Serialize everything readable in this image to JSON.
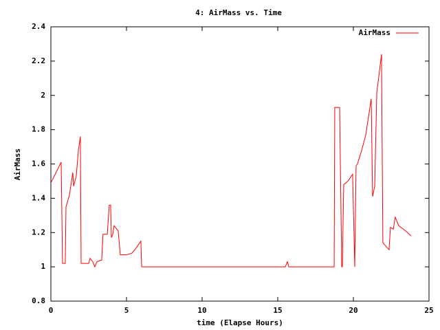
{
  "chart_data": {
    "type": "line",
    "title": "4: AirMass vs. Time",
    "x_label": "time (Elapse Hours)",
    "y_label": "AirMass",
    "x": [
      0,
      0.68,
      0.77,
      0.95,
      1.0,
      1.23,
      1.45,
      1.5,
      1.68,
      1.82,
      1.95,
      2.0,
      2.5,
      2.59,
      2.77,
      2.9,
      3.05,
      3.36,
      3.45,
      3.73,
      3.86,
      3.95,
      4.0,
      4.09,
      4.18,
      4.45,
      4.59,
      5.0,
      5.36,
      5.64,
      5.95,
      6.0,
      15.5,
      15.64,
      15.73,
      18.73,
      18.77,
      19.09,
      19.23,
      19.27,
      19.36,
      19.64,
      19.95,
      20.09,
      20.18,
      20.27,
      20.55,
      20.82,
      21.18,
      21.27,
      21.41,
      21.55,
      21.64,
      21.86,
      21.95,
      22.36,
      22.45,
      22.64,
      22.77,
      23.0,
      23.45,
      23.82
    ],
    "series": [
      {
        "name": "AirMass",
        "color": "#ff0000",
        "values": [
          1.49,
          1.61,
          1.02,
          1.02,
          1.35,
          1.42,
          1.55,
          1.47,
          1.53,
          1.68,
          1.76,
          1.02,
          1.02,
          1.05,
          1.03,
          1.0,
          1.03,
          1.04,
          1.19,
          1.19,
          1.36,
          1.36,
          1.17,
          1.19,
          1.24,
          1.21,
          1.07,
          1.07,
          1.08,
          1.11,
          1.15,
          1.0,
          1.0,
          1.03,
          1.0,
          1.0,
          1.93,
          1.93,
          1.0,
          1.0,
          1.48,
          1.5,
          1.54,
          1.0,
          1.59,
          1.6,
          1.68,
          1.77,
          1.98,
          1.41,
          1.47,
          2.02,
          2.08,
          2.24,
          1.14,
          1.1,
          1.23,
          1.22,
          1.29,
          1.24,
          1.21,
          1.18
        ]
      }
    ],
    "xlim": [
      0,
      25
    ],
    "xticks": [
      0,
      5,
      10,
      15,
      20,
      25
    ],
    "ylim": [
      0.8,
      2.4
    ],
    "yticks": [
      0.8,
      1,
      1.2,
      1.4,
      1.6,
      1.8,
      2,
      2.2,
      2.4
    ],
    "legend": "top-right"
  }
}
